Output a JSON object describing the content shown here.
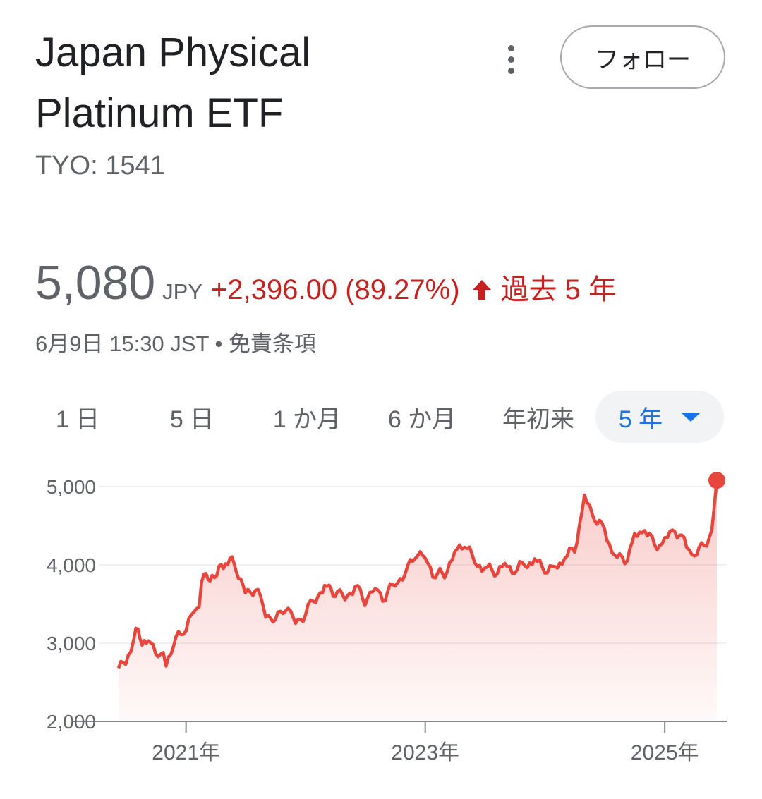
{
  "header": {
    "title_line1": "Japan Physical",
    "title_line2": "Platinum ETF",
    "ticker": "TYO: 1541",
    "follow_label": "フォロー"
  },
  "quote": {
    "price": "5,080",
    "currency": "JPY",
    "change": "+2,396.00 (89.27%)",
    "period": "過去 5 年",
    "timestamp": "6月9日 15:30 JST",
    "separator": " • ",
    "disclaimer": "免責条項",
    "change_color": "#c5221f"
  },
  "tabs": [
    {
      "label": "1 日"
    },
    {
      "label": "5 日"
    },
    {
      "label": "1 か月"
    },
    {
      "label": "6 か月"
    },
    {
      "label": "年初来"
    },
    {
      "label": "5 年",
      "selected": true
    }
  ],
  "chart_data": {
    "type": "area",
    "series_color": "#e8453c",
    "ylim": [
      2000,
      5000
    ],
    "y_ticks": [
      "5,000",
      "4,000",
      "3,000",
      "2,000"
    ],
    "y_tick_values": [
      5000,
      4000,
      3000,
      2000
    ],
    "x_ticks": [
      "2021年",
      "2023年",
      "2025年"
    ],
    "x_tick_values": [
      "2021-01-01",
      "2023-01-01",
      "2025-01-01"
    ],
    "x_range": [
      "2020-06-09",
      "2025-06-09"
    ],
    "points": [
      [
        "2020-06-09",
        2680
      ],
      [
        "2020-07-01",
        2760
      ],
      [
        "2020-08-01",
        3150
      ],
      [
        "2020-08-20",
        3020
      ],
      [
        "2020-09-15",
        3000
      ],
      [
        "2020-10-15",
        2850
      ],
      [
        "2020-11-01",
        2760
      ],
      [
        "2020-12-01",
        3050
      ],
      [
        "2021-01-01",
        3200
      ],
      [
        "2021-01-25",
        3420
      ],
      [
        "2021-02-10",
        3450
      ],
      [
        "2021-02-25",
        3950
      ],
      [
        "2021-03-15",
        3780
      ],
      [
        "2021-04-05",
        3900
      ],
      [
        "2021-04-25",
        4000
      ],
      [
        "2021-05-15",
        4070
      ],
      [
        "2021-06-10",
        3900
      ],
      [
        "2021-07-01",
        3650
      ],
      [
        "2021-08-01",
        3700
      ],
      [
        "2021-09-01",
        3400
      ],
      [
        "2021-10-01",
        3290
      ],
      [
        "2021-11-01",
        3480
      ],
      [
        "2021-12-01",
        3280
      ],
      [
        "2022-01-01",
        3380
      ],
      [
        "2022-02-01",
        3600
      ],
      [
        "2022-03-07",
        3720
      ],
      [
        "2022-04-01",
        3650
      ],
      [
        "2022-05-01",
        3600
      ],
      [
        "2022-06-01",
        3720
      ],
      [
        "2022-07-01",
        3560
      ],
      [
        "2022-08-01",
        3700
      ],
      [
        "2022-09-01",
        3580
      ],
      [
        "2022-10-01",
        3790
      ],
      [
        "2022-11-01",
        3880
      ],
      [
        "2022-12-01",
        4150
      ],
      [
        "2023-01-01",
        4100
      ],
      [
        "2023-02-01",
        3850
      ],
      [
        "2023-03-01",
        3900
      ],
      [
        "2023-04-01",
        4150
      ],
      [
        "2023-05-01",
        4280
      ],
      [
        "2023-06-01",
        4050
      ],
      [
        "2023-07-01",
        3950
      ],
      [
        "2023-08-01",
        3920
      ],
      [
        "2023-09-01",
        4000
      ],
      [
        "2023-10-01",
        3920
      ],
      [
        "2023-11-01",
        4020
      ],
      [
        "2023-12-01",
        4050
      ],
      [
        "2024-01-01",
        3950
      ],
      [
        "2024-02-01",
        3960
      ],
      [
        "2024-03-01",
        4080
      ],
      [
        "2024-04-01",
        4200
      ],
      [
        "2024-05-01",
        4850
      ],
      [
        "2024-06-01",
        4600
      ],
      [
        "2024-07-01",
        4450
      ],
      [
        "2024-08-01",
        4100
      ],
      [
        "2024-09-01",
        4050
      ],
      [
        "2024-10-01",
        4350
      ],
      [
        "2024-11-01",
        4450
      ],
      [
        "2024-12-01",
        4250
      ],
      [
        "2025-01-01",
        4300
      ],
      [
        "2025-02-01",
        4450
      ],
      [
        "2025-03-01",
        4300
      ],
      [
        "2025-04-01",
        4100
      ],
      [
        "2025-05-01",
        4250
      ],
      [
        "2025-05-25",
        4450
      ],
      [
        "2025-06-09",
        5080
      ]
    ]
  }
}
